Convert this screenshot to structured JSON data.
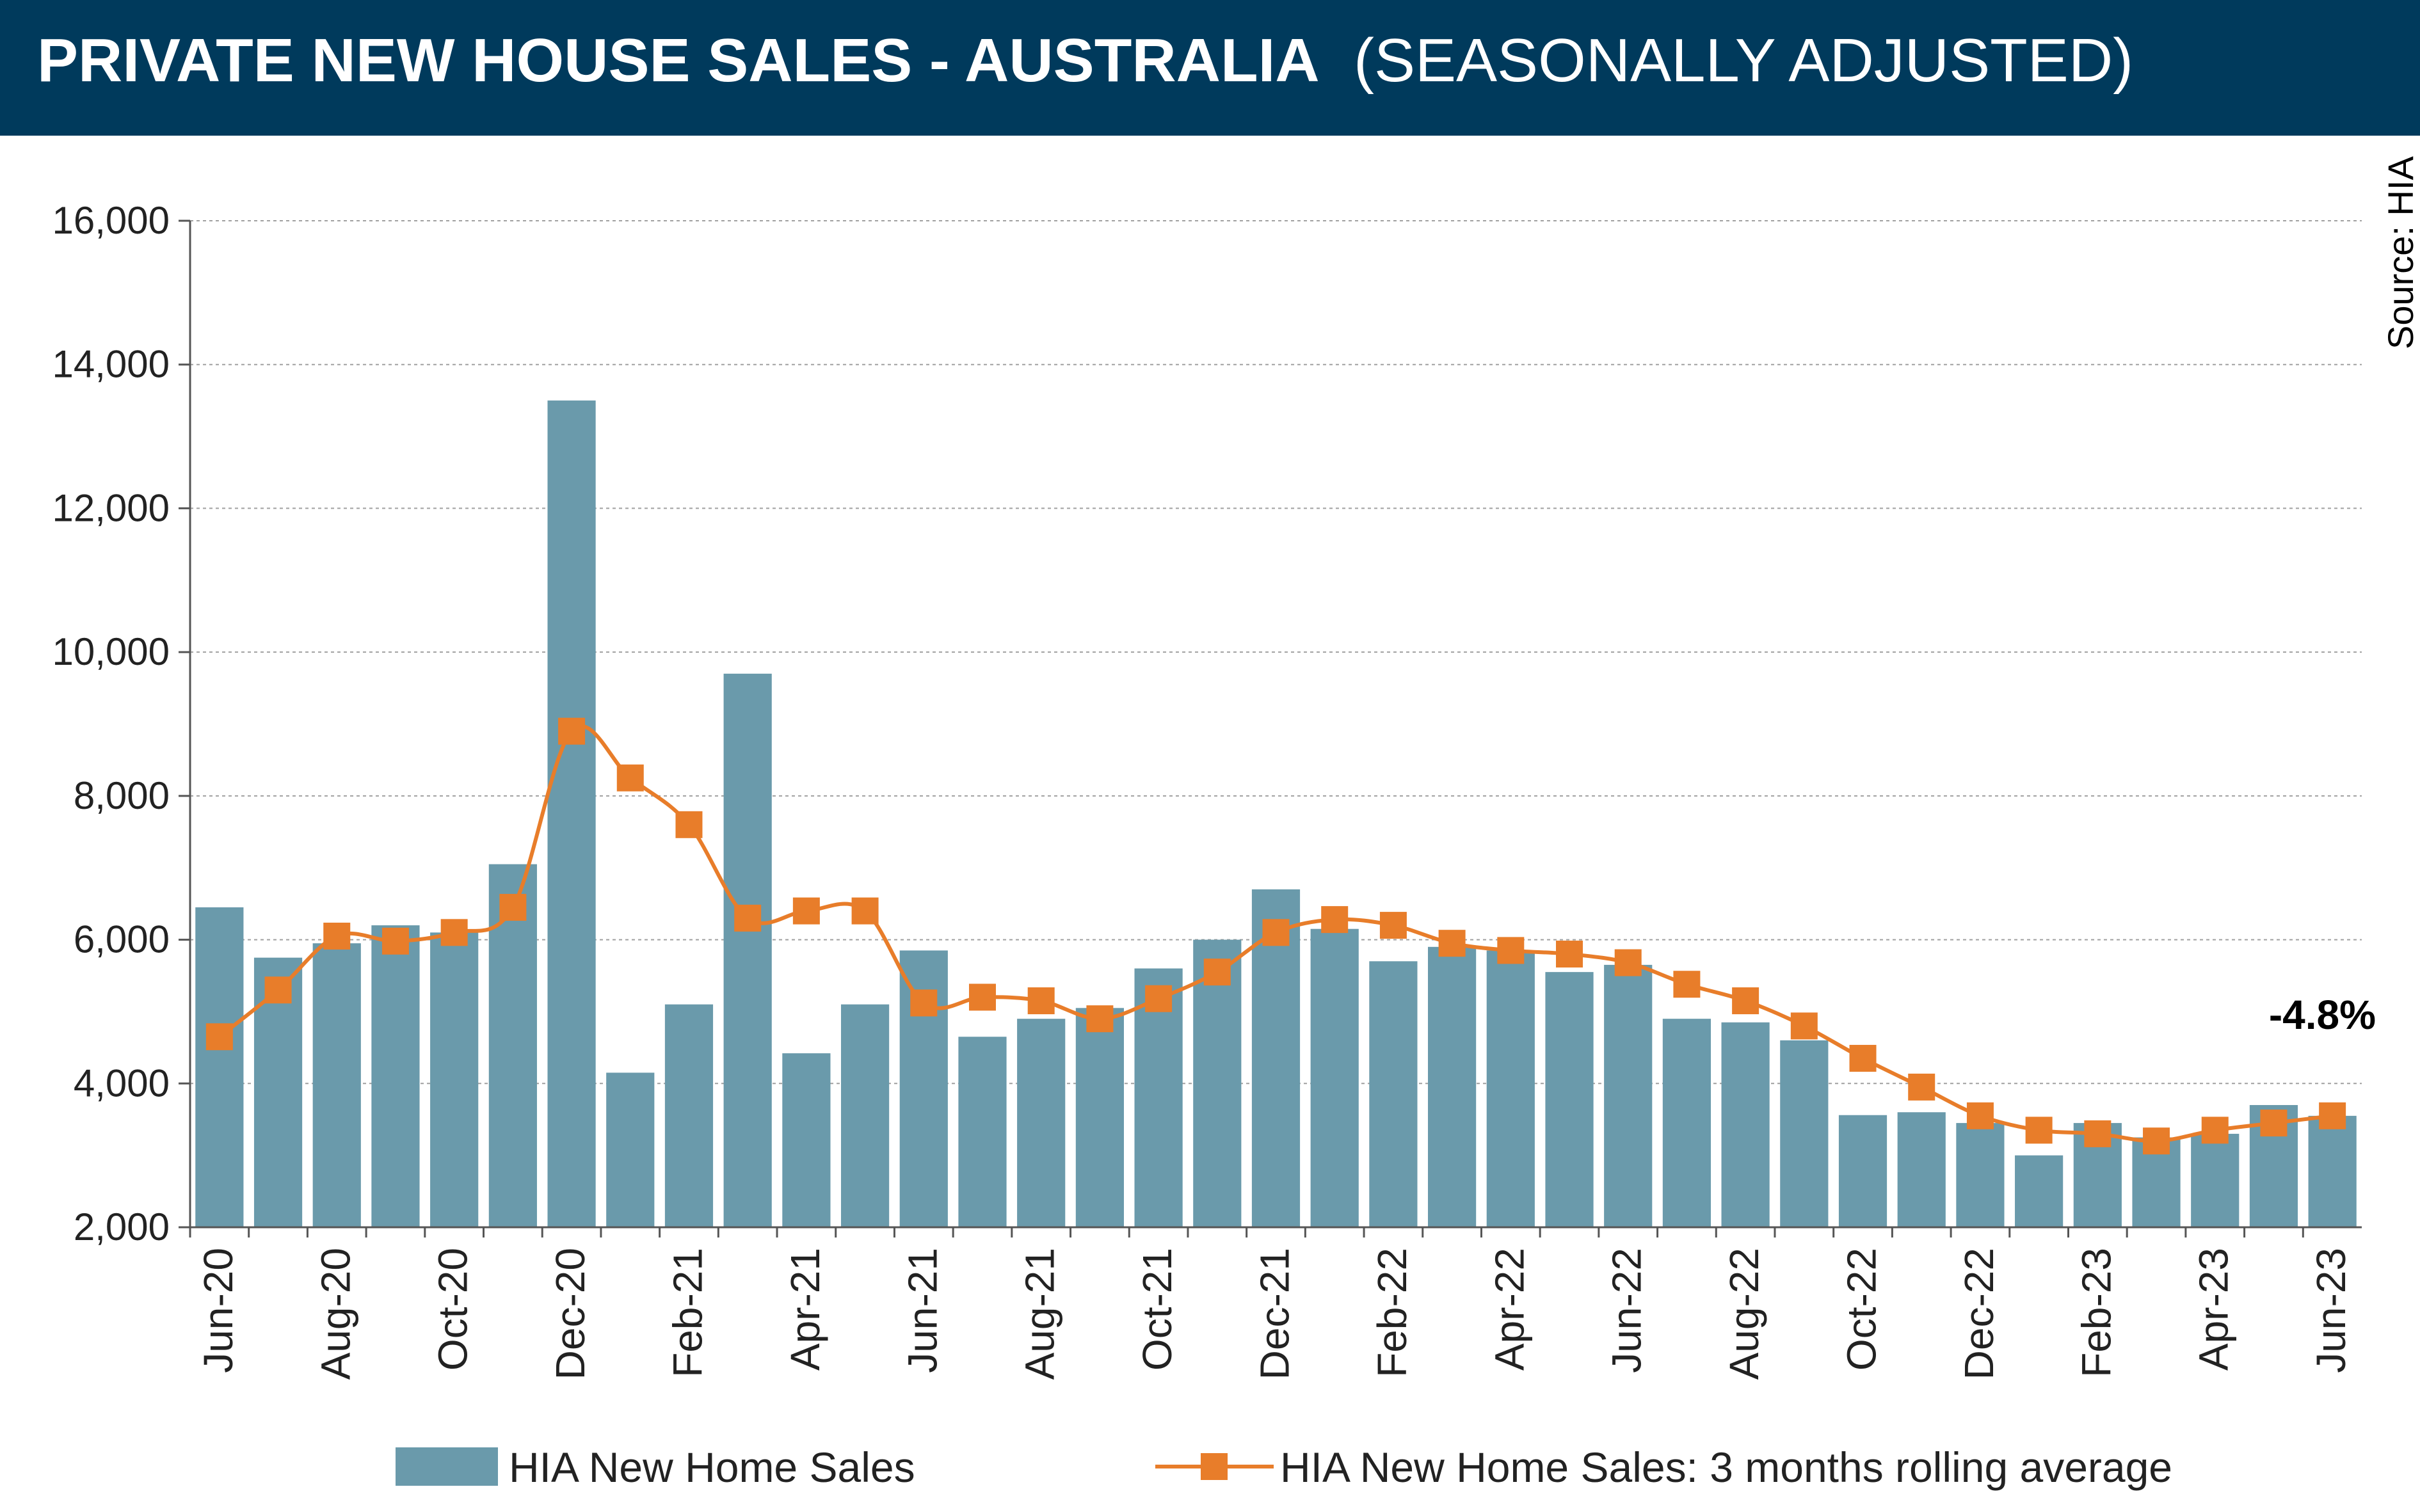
{
  "title": {
    "main": "PRIVATE NEW HOUSE SALES -  AUSTRALIA",
    "sub": "(SEASONALLY ADJUSTED)"
  },
  "source": "Source: HIA",
  "annotation": "-4.8%",
  "colors": {
    "bar": "#6a9aab",
    "line": "#e87d2a",
    "title_bg": "#003a5c"
  },
  "chart_data": {
    "type": "bar",
    "x": [
      "Jun-20",
      "Jul-20",
      "Aug-20",
      "Sep-20",
      "Oct-20",
      "Nov-20",
      "Dec-20",
      "Jan-21",
      "Feb-21",
      "Mar-21",
      "Apr-21",
      "May-21",
      "Jun-21",
      "Jul-21",
      "Aug-21",
      "Sep-21",
      "Oct-21",
      "Nov-21",
      "Dec-21",
      "Jan-22",
      "Feb-22",
      "Mar-22",
      "Apr-22",
      "May-22",
      "Jun-22",
      "Jul-22",
      "Aug-22",
      "Sep-22",
      "Oct-22",
      "Nov-22",
      "Dec-22",
      "Jan-23",
      "Feb-23",
      "Mar-23",
      "Apr-23",
      "May-23",
      "Jun-23"
    ],
    "tick_labels": [
      "Jun-20",
      "Aug-20",
      "Oct-20",
      "Dec-20",
      "Feb-21",
      "Apr-21",
      "Jun-21",
      "Aug-21",
      "Oct-21",
      "Dec-21",
      "Feb-22",
      "Apr-22",
      "Jun-22",
      "Aug-22",
      "Oct-22",
      "Dec-22",
      "Feb-23",
      "Apr-23",
      "Jun-23"
    ],
    "yticks": [
      "2,000",
      "4,000",
      "6,000",
      "8,000",
      "10,000",
      "12,000",
      "14,000",
      "16,000"
    ],
    "ylim": [
      2000,
      16000
    ],
    "grid": true,
    "legend": "bottom",
    "series": [
      {
        "name": "HIA New Home Sales",
        "type": "bar",
        "values": [
          6450,
          5750,
          5950,
          6200,
          6100,
          7050,
          13500,
          4150,
          5100,
          9700,
          4420,
          5100,
          5850,
          4650,
          4900,
          5050,
          5600,
          6000,
          6700,
          6150,
          5700,
          5900,
          5850,
          5550,
          5650,
          4900,
          4850,
          4600,
          3560,
          3600,
          3450,
          3000,
          3450,
          3250,
          3300,
          3700,
          3550
        ]
      },
      {
        "name": "HIA New Home Sales: 3 months rolling average",
        "type": "line",
        "values": [
          4650,
          5300,
          6050,
          5980,
          6100,
          6450,
          8900,
          8250,
          7600,
          6300,
          6400,
          6400,
          5120,
          5200,
          5150,
          4900,
          5180,
          5550,
          6100,
          6280,
          6200,
          5950,
          5850,
          5800,
          5680,
          5380,
          5150,
          4800,
          4350,
          3950,
          3550,
          3350,
          3300,
          3200,
          3350,
          3450,
          3550
        ]
      }
    ]
  }
}
